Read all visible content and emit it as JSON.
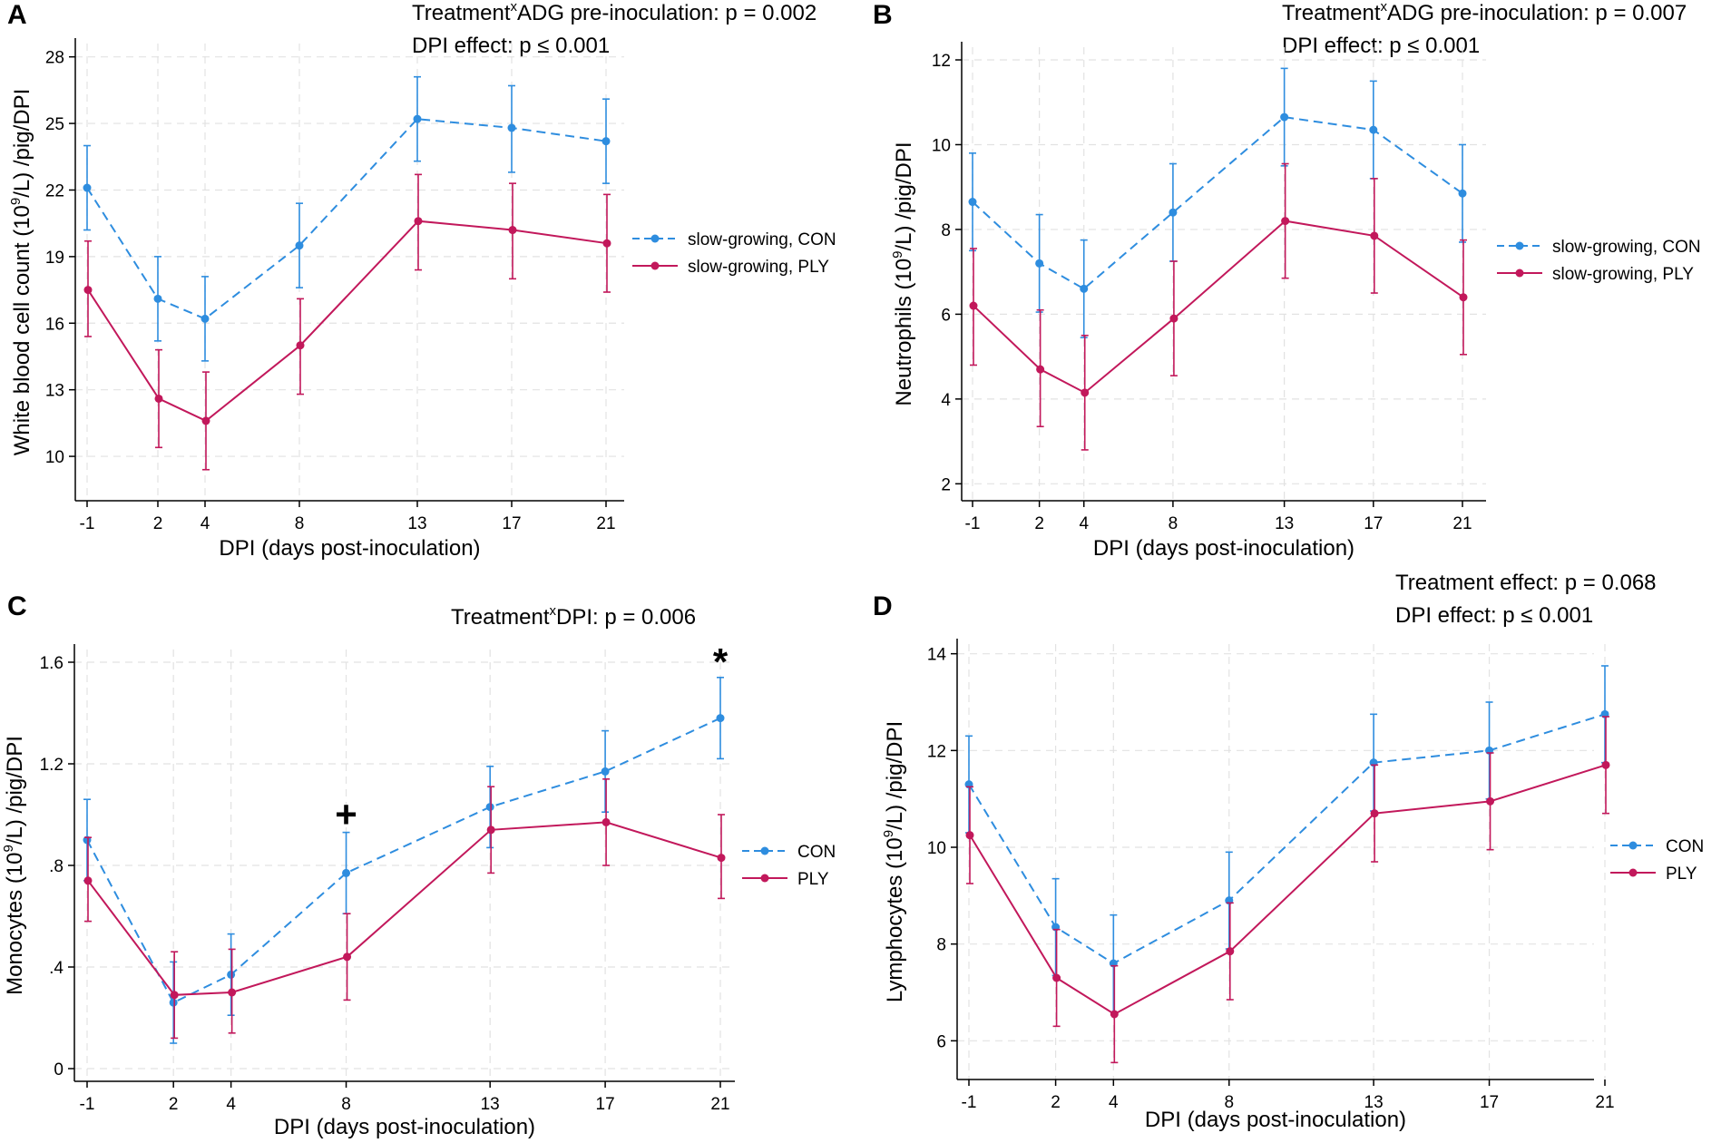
{
  "chart_data": [
    {
      "panel": "A",
      "type": "line",
      "ylabel_parts": [
        "White blood cell count (10",
        "9",
        "/L) /pig/DPI"
      ],
      "xlabel": "DPI (days post-inoculation)",
      "annotations": [
        {
          "parts": [
            "Treatment",
            "x",
            "ADG pre-inoculation: p = 0.002"
          ]
        },
        {
          "parts": [
            "DPI effect: p ≤ 0.001"
          ]
        }
      ],
      "ylim": [
        8,
        28.6
      ],
      "yticks": [
        10,
        13,
        16,
        19,
        22,
        25,
        28
      ],
      "ytick_labels": [
        "10",
        "13",
        "16",
        "19",
        "22",
        "25",
        "28"
      ],
      "x": [
        -1,
        2,
        4,
        8,
        13,
        17,
        21
      ],
      "xtick_labels": [
        "-1",
        "2",
        "4",
        "8",
        "13",
        "17",
        "21"
      ],
      "series": [
        {
          "name": "slow-growing, CON",
          "style": "dashed",
          "color": "#2E8DDF",
          "values": [
            22.1,
            17.1,
            16.2,
            19.5,
            25.2,
            24.8,
            24.2
          ],
          "lower": [
            20.2,
            15.2,
            14.3,
            17.6,
            23.3,
            22.8,
            22.3
          ],
          "upper": [
            24.0,
            19.0,
            18.1,
            21.4,
            27.1,
            26.7,
            26.1
          ]
        },
        {
          "name": "slow-growing, PLY",
          "style": "solid",
          "color": "#C2185B",
          "values": [
            17.5,
            12.6,
            11.6,
            15.0,
            20.6,
            20.2,
            19.6
          ],
          "lower": [
            15.4,
            10.4,
            9.4,
            12.8,
            18.4,
            18.0,
            17.4
          ],
          "upper": [
            19.7,
            14.8,
            13.8,
            17.1,
            22.7,
            22.3,
            21.8
          ]
        }
      ],
      "markers": []
    },
    {
      "panel": "B",
      "type": "line",
      "ylabel_parts": [
        "Neutrophils (10",
        "9",
        "/L) /pig/DPI"
      ],
      "xlabel": "DPI (days post-inoculation)",
      "annotations": [
        {
          "parts": [
            "Treatment",
            "x",
            "ADG pre-inoculation: p = 0.007"
          ]
        },
        {
          "parts": [
            "DPI effect: p ≤ 0.001"
          ]
        }
      ],
      "ylim": [
        1.6,
        12.3
      ],
      "yticks": [
        2,
        4,
        6,
        8,
        10,
        12
      ],
      "ytick_labels": [
        "2",
        "4",
        "6",
        "8",
        "10",
        "12"
      ],
      "x": [
        -1,
        2,
        4,
        8,
        13,
        17,
        21
      ],
      "xtick_labels": [
        "-1",
        "2",
        "4",
        "8",
        "13",
        "17",
        "21"
      ],
      "series": [
        {
          "name": "slow-growing, CON",
          "style": "dashed",
          "color": "#2E8DDF",
          "values": [
            8.65,
            7.2,
            6.6,
            8.4,
            10.65,
            10.35,
            8.85
          ],
          "lower": [
            7.5,
            6.05,
            5.45,
            7.25,
            9.5,
            9.2,
            7.7
          ],
          "upper": [
            9.8,
            8.35,
            7.75,
            9.55,
            11.8,
            11.5,
            10.0
          ]
        },
        {
          "name": "slow-growing, PLY",
          "style": "solid",
          "color": "#C2185B",
          "values": [
            6.2,
            4.7,
            4.15,
            5.9,
            8.2,
            7.85,
            6.4
          ],
          "lower": [
            4.8,
            3.35,
            2.8,
            4.55,
            6.85,
            6.5,
            5.05
          ],
          "upper": [
            7.55,
            6.1,
            5.5,
            7.25,
            9.55,
            9.2,
            7.75
          ]
        }
      ],
      "markers": []
    },
    {
      "panel": "C",
      "type": "line",
      "ylabel_parts": [
        "Monocytes (10",
        "9",
        "/L) /pig/DPI"
      ],
      "xlabel": "DPI (days post-inoculation)",
      "annotations": [
        {
          "parts": [
            "Treatment",
            "x",
            "DPI: p = 0.006"
          ]
        }
      ],
      "ylim": [
        -0.05,
        1.65
      ],
      "yticks": [
        0,
        0.4,
        0.8,
        1.2,
        1.6
      ],
      "ytick_labels": [
        "0",
        ".4",
        ".8",
        "1.2",
        "1.6"
      ],
      "x": [
        -1,
        2,
        4,
        8,
        13,
        17,
        21
      ],
      "xtick_labels": [
        "-1",
        "2",
        "4",
        "8",
        "13",
        "17",
        "21"
      ],
      "series": [
        {
          "name": "CON",
          "style": "dashed",
          "color": "#2E8DDF",
          "values": [
            0.9,
            0.26,
            0.37,
            0.77,
            1.03,
            1.17,
            1.38
          ],
          "lower": [
            0.74,
            0.1,
            0.21,
            0.61,
            0.87,
            1.01,
            1.22
          ],
          "upper": [
            1.06,
            0.42,
            0.53,
            0.93,
            1.19,
            1.33,
            1.54
          ]
        },
        {
          "name": "PLY",
          "style": "solid",
          "color": "#C2185B",
          "values": [
            0.74,
            0.29,
            0.3,
            0.44,
            0.94,
            0.97,
            0.83
          ],
          "lower": [
            0.58,
            0.12,
            0.14,
            0.27,
            0.77,
            0.8,
            0.67
          ],
          "upper": [
            0.91,
            0.46,
            0.47,
            0.61,
            1.11,
            1.14,
            1.0
          ]
        }
      ],
      "markers": [
        {
          "symbol": "+",
          "x": 8,
          "y": 1.0
        },
        {
          "symbol": "*",
          "x": 21,
          "y": 1.6
        }
      ]
    },
    {
      "panel": "D",
      "type": "line",
      "ylabel_parts": [
        "Lymphocytes (10",
        "9",
        "/L) /pig/DPI"
      ],
      "xlabel": "DPI (days post-inoculation)",
      "annotations": [
        {
          "parts": [
            "Treatment effect: p = 0.068"
          ]
        },
        {
          "parts": [
            "DPI effect: p ≤ 0.001"
          ]
        }
      ],
      "ylim": [
        5.2,
        14.2
      ],
      "yticks": [
        6,
        8,
        10,
        12,
        14
      ],
      "ytick_labels": [
        "6",
        "8",
        "10",
        "12",
        "14"
      ],
      "x": [
        -1,
        2,
        4,
        8,
        13,
        17,
        21
      ],
      "xtick_labels": [
        "-1",
        "2",
        "4",
        "8",
        "13",
        "17",
        "21"
      ],
      "series": [
        {
          "name": "CON",
          "style": "dashed",
          "color": "#2E8DDF",
          "values": [
            11.3,
            8.35,
            7.6,
            8.9,
            11.75,
            12.0,
            12.75
          ],
          "lower": [
            10.3,
            7.35,
            6.6,
            7.9,
            10.75,
            11.0,
            11.75
          ],
          "upper": [
            12.3,
            9.35,
            8.6,
            9.9,
            12.75,
            13.0,
            13.75
          ]
        },
        {
          "name": "PLY",
          "style": "solid",
          "color": "#C2185B",
          "values": [
            10.25,
            7.3,
            6.55,
            7.85,
            10.7,
            10.95,
            11.7
          ],
          "lower": [
            9.25,
            6.3,
            5.55,
            6.85,
            9.7,
            9.95,
            10.7
          ],
          "upper": [
            11.25,
            8.3,
            7.55,
            8.85,
            11.7,
            11.95,
            12.7
          ]
        }
      ],
      "markers": []
    }
  ]
}
